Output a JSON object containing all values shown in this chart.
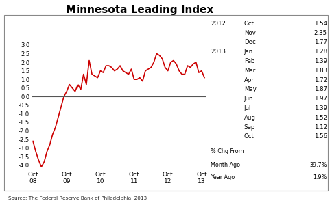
{
  "title": "Minnesota Leading Index",
  "source": "Source: The Federal Reserve Bank of Philadelphia, 2013",
  "line_color": "#cc0000",
  "line_width": 1.2,
  "zero_line_color": "#555555",
  "background_color": "#ffffff",
  "ylim": [
    -4.25,
    3.2
  ],
  "yticks": [
    -4.0,
    -3.5,
    -3.0,
    -2.5,
    -2.0,
    -1.5,
    -1.0,
    -0.5,
    0.0,
    0.5,
    1.0,
    1.5,
    2.0,
    2.5,
    3.0
  ],
  "xtick_labels": [
    "Oct\n08",
    "Oct\n09",
    "Oct\n10",
    "Oct\n11",
    "Oct\n12",
    "Oct\n13"
  ],
  "table_lines": [
    [
      "2012",
      "Oct",
      "1.54"
    ],
    [
      "",
      "Nov",
      "2.35"
    ],
    [
      "",
      "Dec",
      "1.77"
    ],
    [
      "2013",
      "Jan",
      "1.28"
    ],
    [
      "",
      "Feb",
      "1.39"
    ],
    [
      "",
      "Mar",
      "1.83"
    ],
    [
      "",
      "Apr",
      "1.72"
    ],
    [
      "",
      "May",
      "1.87"
    ],
    [
      "",
      "Jun",
      "1.97"
    ],
    [
      "",
      "Jul",
      "1.39"
    ],
    [
      "",
      "Aug",
      "1.52"
    ],
    [
      "",
      "Sep",
      "1.12"
    ],
    [
      "",
      "Oct",
      "1.56"
    ]
  ],
  "pct_chg_from": "% Chg From",
  "month_ago_label": "Month Ago",
  "month_ago_val": "39.7%",
  "year_ago_label": "Year Ago",
  "year_ago_val": "1.9%",
  "data_y": [
    -2.6,
    -3.2,
    -3.7,
    -4.1,
    -3.8,
    -3.2,
    -2.8,
    -2.2,
    -1.8,
    -1.2,
    -0.6,
    0.0,
    0.3,
    0.7,
    0.5,
    0.3,
    0.7,
    0.4,
    1.3,
    0.7,
    2.1,
    1.3,
    1.2,
    1.1,
    1.5,
    1.4,
    1.8,
    1.8,
    1.7,
    1.5,
    1.6,
    1.8,
    1.5,
    1.4,
    1.3,
    1.6,
    1.0,
    1.0,
    1.1,
    0.9,
    1.5,
    1.6,
    1.7,
    2.0,
    2.5,
    2.4,
    2.2,
    1.7,
    1.5,
    2.0,
    2.1,
    1.9,
    1.5,
    1.3,
    1.3,
    1.8,
    1.7,
    1.9,
    2.0,
    1.4,
    1.5,
    1.1
  ],
  "xtick_positions": [
    0,
    12,
    24,
    36,
    48,
    60
  ]
}
